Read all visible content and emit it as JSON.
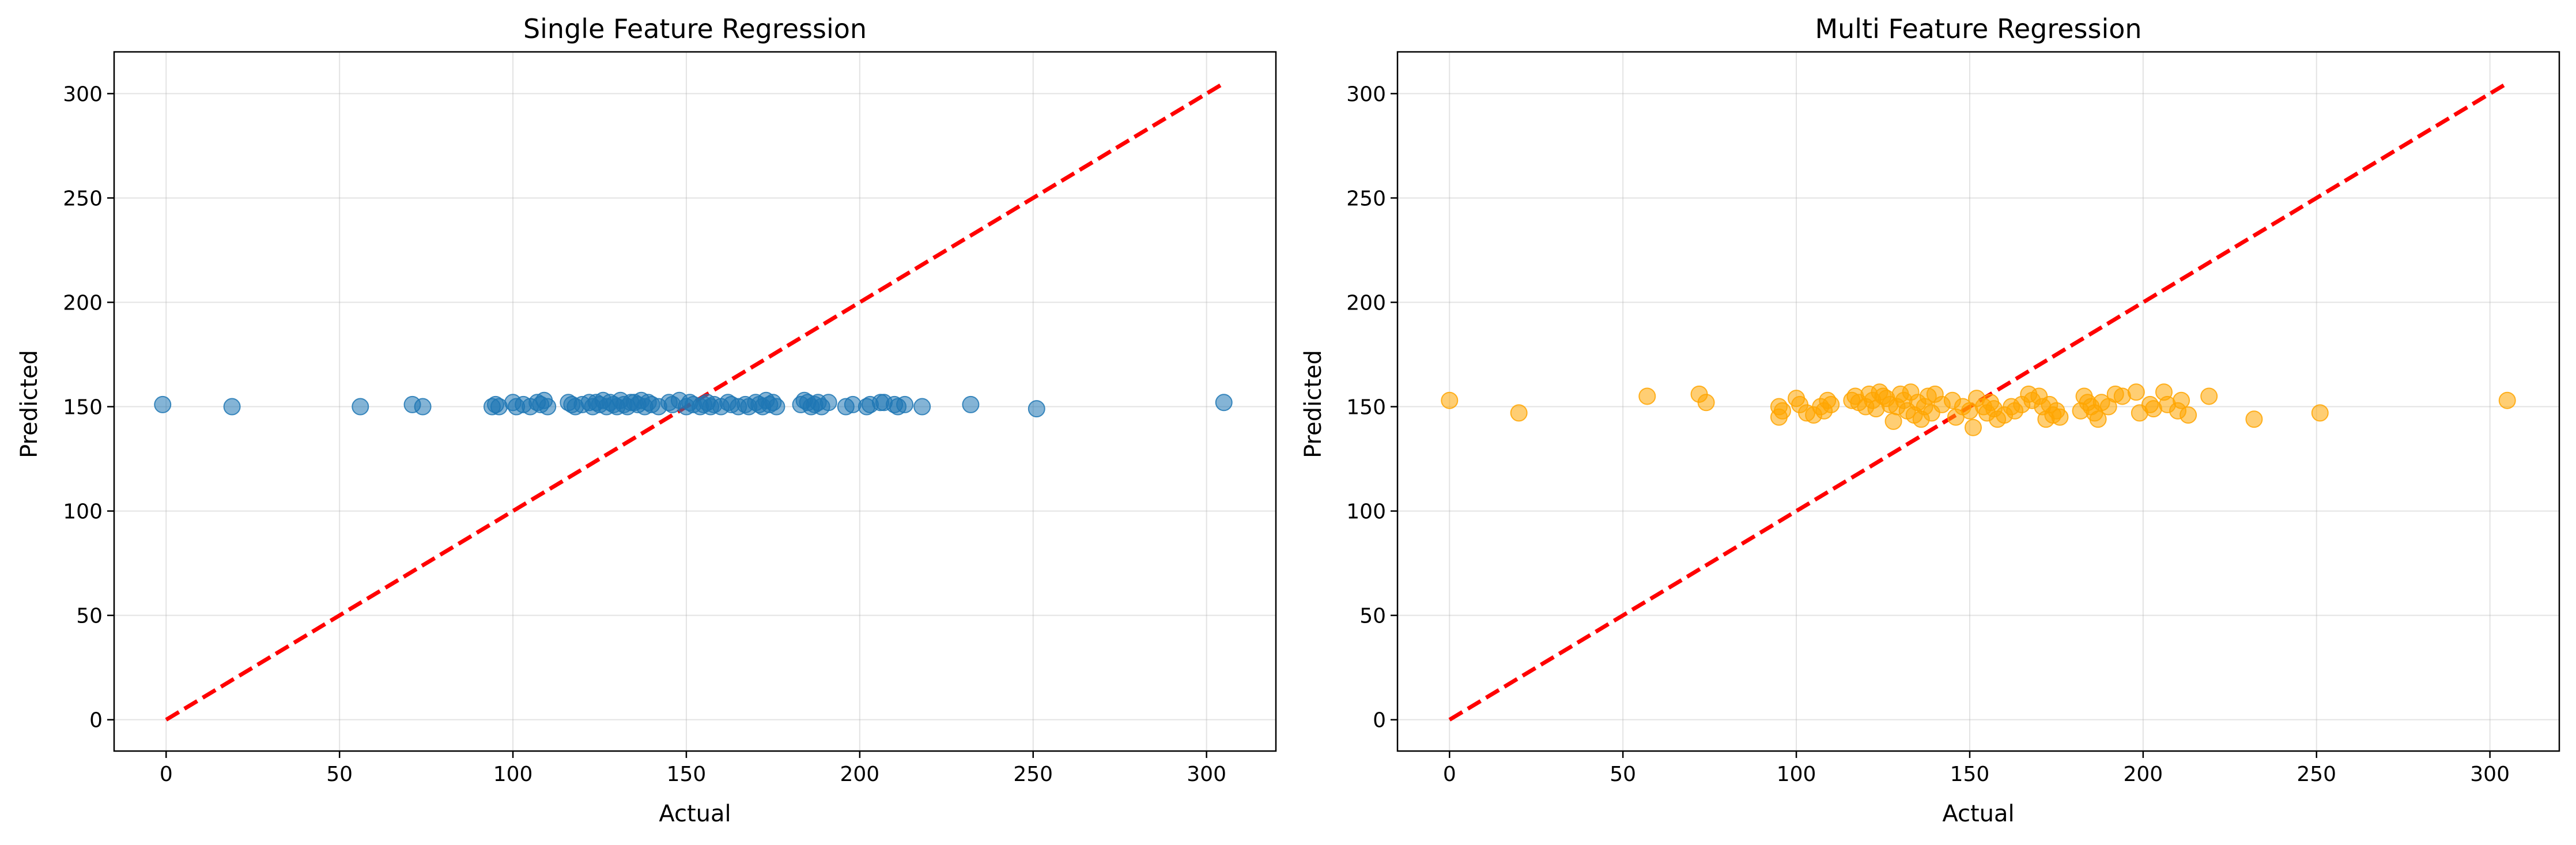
{
  "colors": {
    "left_points": "#1f77b4",
    "right_points": "#ffa500",
    "reference_line": "#ff0000",
    "grid": "#b0b0b0"
  },
  "chart_data": [
    {
      "type": "scatter",
      "title": "Single Feature Regression",
      "xlabel": "Actual",
      "ylabel": "Predicted",
      "xlim": [
        -15,
        320
      ],
      "ylim": [
        -15,
        320
      ],
      "xticks": [
        0,
        50,
        100,
        150,
        200,
        250,
        300
      ],
      "yticks": [
        0,
        50,
        100,
        150,
        200,
        250,
        300
      ],
      "grid": true,
      "point_color": "#1f77b4",
      "reference_line": {
        "x": [
          0,
          305
        ],
        "y": [
          0,
          305
        ],
        "style": "dashed",
        "color": "#ff0000"
      },
      "points": [
        [
          -1,
          151
        ],
        [
          19,
          150
        ],
        [
          56,
          150
        ],
        [
          71,
          151
        ],
        [
          74,
          150
        ],
        [
          94,
          150
        ],
        [
          95,
          151
        ],
        [
          96,
          150
        ],
        [
          100,
          152
        ],
        [
          101,
          150
        ],
        [
          103,
          151
        ],
        [
          105,
          150
        ],
        [
          107,
          152
        ],
        [
          108,
          151
        ],
        [
          109,
          153
        ],
        [
          110,
          150
        ],
        [
          116,
          152
        ],
        [
          117,
          151
        ],
        [
          118,
          150
        ],
        [
          120,
          151
        ],
        [
          122,
          152
        ],
        [
          123,
          150
        ],
        [
          124,
          152
        ],
        [
          125,
          151
        ],
        [
          126,
          153
        ],
        [
          127,
          150
        ],
        [
          128,
          152
        ],
        [
          129,
          151
        ],
        [
          130,
          150
        ],
        [
          131,
          153
        ],
        [
          132,
          151
        ],
        [
          133,
          150
        ],
        [
          134,
          152
        ],
        [
          135,
          152
        ],
        [
          136,
          151
        ],
        [
          137,
          153
        ],
        [
          138,
          150
        ],
        [
          139,
          152
        ],
        [
          140,
          151
        ],
        [
          142,
          150
        ],
        [
          145,
          152
        ],
        [
          146,
          151
        ],
        [
          148,
          153
        ],
        [
          150,
          150
        ],
        [
          151,
          152
        ],
        [
          152,
          151
        ],
        [
          154,
          150
        ],
        [
          155,
          151
        ],
        [
          156,
          152
        ],
        [
          157,
          150
        ],
        [
          158,
          151
        ],
        [
          160,
          150
        ],
        [
          162,
          152
        ],
        [
          163,
          151
        ],
        [
          165,
          150
        ],
        [
          167,
          151
        ],
        [
          168,
          150
        ],
        [
          170,
          152
        ],
        [
          171,
          151
        ],
        [
          172,
          150
        ],
        [
          173,
          153
        ],
        [
          174,
          151
        ],
        [
          175,
          152
        ],
        [
          176,
          150
        ],
        [
          183,
          151
        ],
        [
          184,
          153
        ],
        [
          185,
          152
        ],
        [
          186,
          150
        ],
        [
          187,
          151
        ],
        [
          188,
          152
        ],
        [
          189,
          150
        ],
        [
          191,
          152
        ],
        [
          196,
          150
        ],
        [
          198,
          151
        ],
        [
          202,
          150
        ],
        [
          203,
          151
        ],
        [
          206,
          152
        ],
        [
          207,
          152
        ],
        [
          210,
          151
        ],
        [
          211,
          150
        ],
        [
          213,
          151
        ],
        [
          218,
          150
        ],
        [
          232,
          151
        ],
        [
          251,
          149
        ],
        [
          305,
          152
        ]
      ]
    },
    {
      "type": "scatter",
      "title": "Multi Feature Regression",
      "xlabel": "Actual",
      "ylabel": "Predicted",
      "xlim": [
        -15,
        320
      ],
      "ylim": [
        -15,
        320
      ],
      "xticks": [
        0,
        50,
        100,
        150,
        200,
        250,
        300
      ],
      "yticks": [
        0,
        50,
        100,
        150,
        200,
        250,
        300
      ],
      "grid": true,
      "point_color": "#ffa500",
      "reference_line": {
        "x": [
          0,
          305
        ],
        "y": [
          0,
          305
        ],
        "style": "dashed",
        "color": "#ff0000"
      },
      "points": [
        [
          0,
          153
        ],
        [
          20,
          147
        ],
        [
          57,
          155
        ],
        [
          72,
          156
        ],
        [
          74,
          152
        ],
        [
          95,
          150
        ],
        [
          95,
          145
        ],
        [
          96,
          148
        ],
        [
          100,
          154
        ],
        [
          101,
          151
        ],
        [
          103,
          147
        ],
        [
          105,
          146
        ],
        [
          107,
          150
        ],
        [
          108,
          148
        ],
        [
          109,
          153
        ],
        [
          110,
          151
        ],
        [
          116,
          153
        ],
        [
          117,
          155
        ],
        [
          118,
          152
        ],
        [
          120,
          150
        ],
        [
          121,
          156
        ],
        [
          122,
          153
        ],
        [
          123,
          149
        ],
        [
          124,
          157
        ],
        [
          125,
          155
        ],
        [
          126,
          154
        ],
        [
          127,
          151
        ],
        [
          128,
          143
        ],
        [
          129,
          150
        ],
        [
          130,
          156
        ],
        [
          131,
          153
        ],
        [
          132,
          148
        ],
        [
          133,
          157
        ],
        [
          134,
          146
        ],
        [
          135,
          152
        ],
        [
          136,
          144
        ],
        [
          137,
          150
        ],
        [
          138,
          155
        ],
        [
          139,
          147
        ],
        [
          140,
          156
        ],
        [
          142,
          151
        ],
        [
          145,
          153
        ],
        [
          146,
          145
        ],
        [
          148,
          150
        ],
        [
          150,
          148
        ],
        [
          151,
          140
        ],
        [
          152,
          154
        ],
        [
          154,
          150
        ],
        [
          155,
          147
        ],
        [
          156,
          152
        ],
        [
          157,
          149
        ],
        [
          158,
          144
        ],
        [
          160,
          146
        ],
        [
          162,
          150
        ],
        [
          163,
          148
        ],
        [
          165,
          151
        ],
        [
          167,
          156
        ],
        [
          168,
          153
        ],
        [
          170,
          155
        ],
        [
          171,
          150
        ],
        [
          172,
          144
        ],
        [
          173,
          151
        ],
        [
          174,
          146
        ],
        [
          175,
          148
        ],
        [
          176,
          145
        ],
        [
          182,
          148
        ],
        [
          183,
          155
        ],
        [
          184,
          152
        ],
        [
          185,
          150
        ],
        [
          186,
          147
        ],
        [
          187,
          144
        ],
        [
          188,
          152
        ],
        [
          190,
          150
        ],
        [
          192,
          156
        ],
        [
          194,
          155
        ],
        [
          198,
          157
        ],
        [
          199,
          147
        ],
        [
          202,
          151
        ],
        [
          203,
          149
        ],
        [
          206,
          157
        ],
        [
          207,
          151
        ],
        [
          210,
          148
        ],
        [
          211,
          153
        ],
        [
          213,
          146
        ],
        [
          219,
          155
        ],
        [
          232,
          144
        ],
        [
          251,
          147
        ],
        [
          305,
          153
        ]
      ]
    }
  ]
}
